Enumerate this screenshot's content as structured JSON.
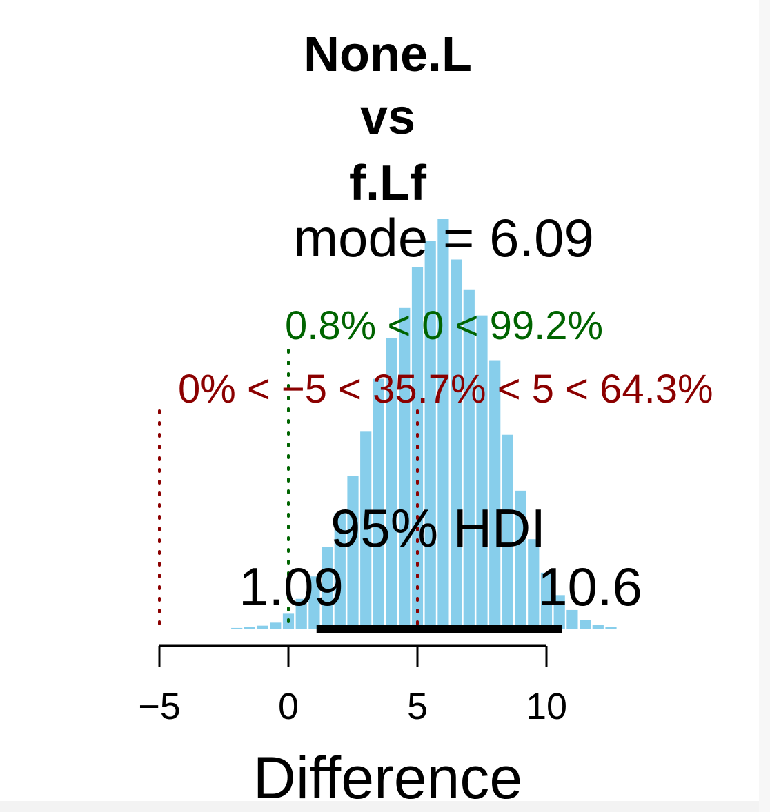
{
  "chart_data": {
    "type": "bar",
    "title_lines": [
      "None.L",
      "vs",
      "f.Lf"
    ],
    "xlabel": "Difference",
    "ylabel": "",
    "xlim": [
      -5,
      13.8
    ],
    "x_ticks": [
      -5,
      0,
      5,
      10
    ],
    "x_tick_labels": [
      "−5",
      "0",
      "5",
      "10"
    ],
    "bin_width": 0.5,
    "bins": [
      {
        "x": -2.0,
        "density": 0.01
      },
      {
        "x": -1.5,
        "density": 0.02
      },
      {
        "x": -1.0,
        "density": 0.04
      },
      {
        "x": -0.5,
        "density": 0.08
      },
      {
        "x": 0.0,
        "density": 0.2
      },
      {
        "x": 0.5,
        "density": 0.4
      },
      {
        "x": 1.0,
        "density": 0.7
      },
      {
        "x": 1.5,
        "density": 1.1
      },
      {
        "x": 2.0,
        "density": 1.55
      },
      {
        "x": 2.5,
        "density": 2.05
      },
      {
        "x": 3.0,
        "density": 2.65
      },
      {
        "x": 3.5,
        "density": 3.35
      },
      {
        "x": 4.0,
        "density": 3.9
      },
      {
        "x": 4.5,
        "density": 4.3
      },
      {
        "x": 5.0,
        "density": 4.85
      },
      {
        "x": 5.5,
        "density": 5.2
      },
      {
        "x": 6.0,
        "density": 5.5
      },
      {
        "x": 6.5,
        "density": 4.95
      },
      {
        "x": 7.0,
        "density": 4.55
      },
      {
        "x": 7.5,
        "density": 4.2
      },
      {
        "x": 8.0,
        "density": 3.6
      },
      {
        "x": 8.5,
        "density": 2.6
      },
      {
        "x": 9.0,
        "density": 1.85
      },
      {
        "x": 9.5,
        "density": 1.2
      },
      {
        "x": 10.0,
        "density": 0.75
      },
      {
        "x": 10.5,
        "density": 0.45
      },
      {
        "x": 11.0,
        "density": 0.25
      },
      {
        "x": 11.5,
        "density": 0.12
      },
      {
        "x": 12.0,
        "density": 0.05
      },
      {
        "x": 12.5,
        "density": 0.02
      }
    ],
    "y_max": 5.5,
    "mode_label": "mode = 6.09",
    "mode": 6.09,
    "hdi_label": "95% HDI",
    "hdi_low": 1.09,
    "hdi_high": 10.6,
    "hdi_low_label": "1.09",
    "hdi_high_label": "10.6",
    "comp_value": 0,
    "comp_label": "0.8% < 0 < 99.2%",
    "rope": [
      -5,
      5
    ],
    "rope_label": "0% < −5 < 35.7% < 5 < 64.3%",
    "colors": {
      "bars": "#87CEEB",
      "comp": "#006400",
      "rope": "#8B0000",
      "text": "#000000",
      "hdi": "#000000"
    }
  }
}
